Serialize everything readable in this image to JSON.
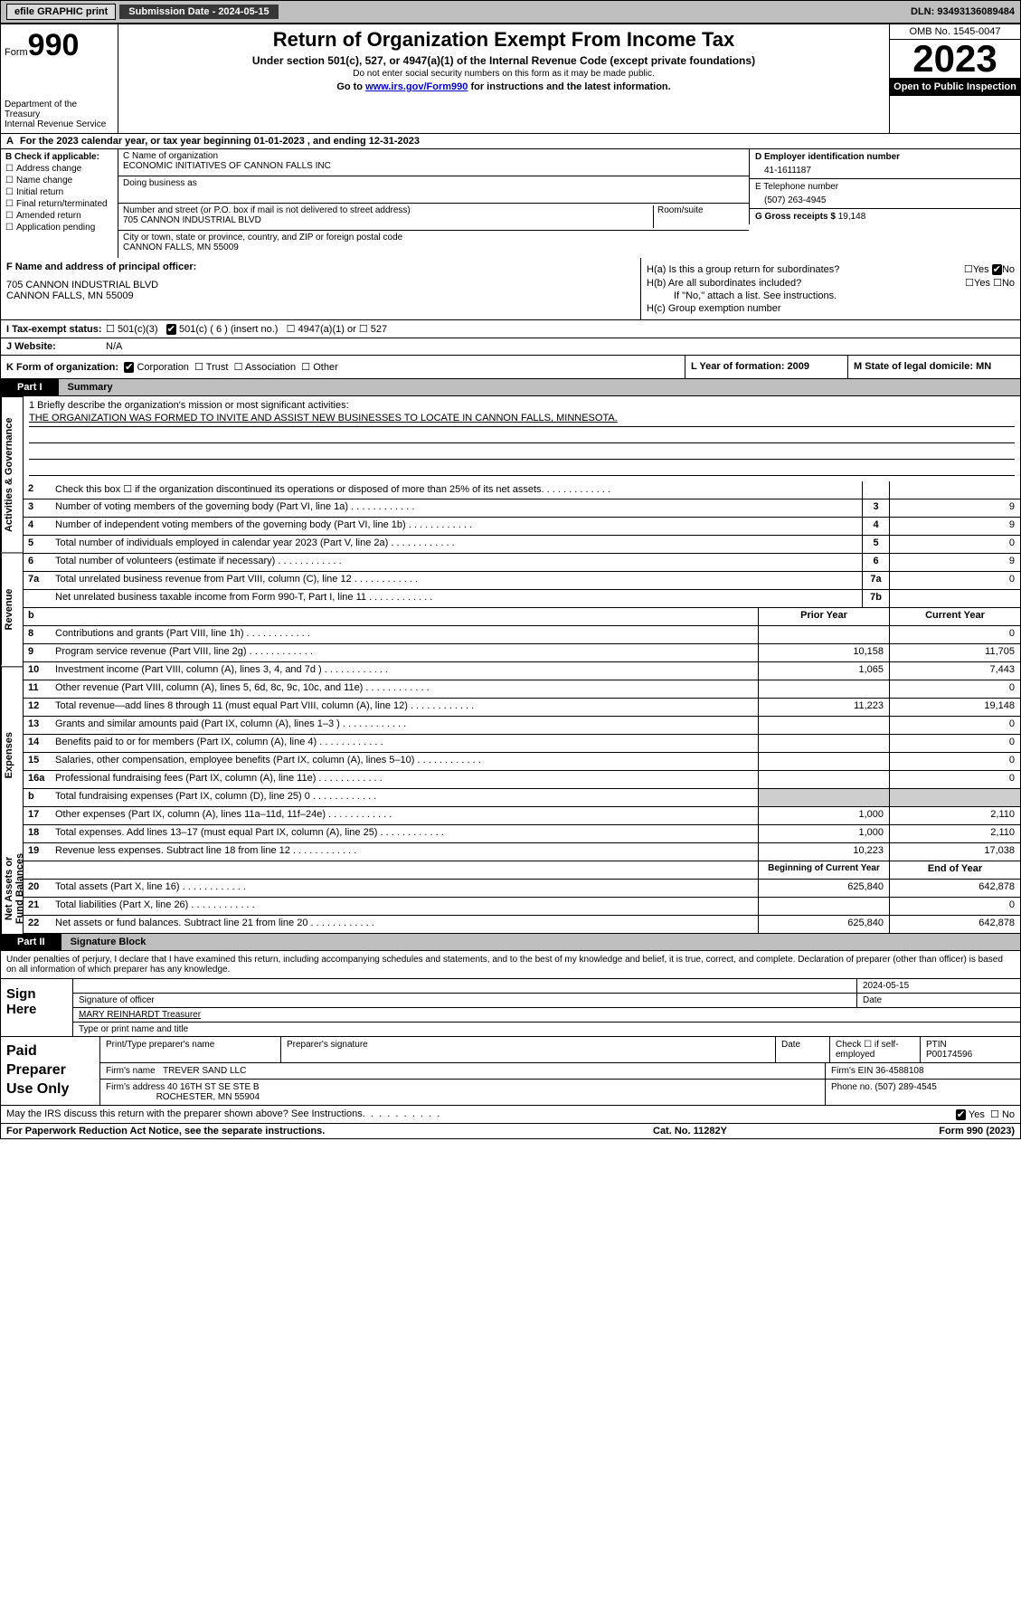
{
  "header": {
    "efile_btn": "efile GRAPHIC print",
    "sub_date_label": "Submission Date - 2024-05-15",
    "dln": "DLN: 93493136089484"
  },
  "top": {
    "form_word": "Form",
    "form_num": "990",
    "dept": "Department of the Treasury",
    "irs": "Internal Revenue Service",
    "title": "Return of Organization Exempt From Income Tax",
    "sub1": "Under section 501(c), 527, or 4947(a)(1) of the Internal Revenue Code (except private foundations)",
    "sub2": "Do not enter social security numbers on this form as it may be made public.",
    "sub3_pre": "Go to ",
    "sub3_link": "www.irs.gov/Form990",
    "sub3_post": " for instructions and the latest information.",
    "omb": "OMB No. 1545-0047",
    "year": "2023",
    "open": "Open to Public Inspection"
  },
  "rowA": {
    "label_a": "A",
    "text": "For the 2023 calendar year, or tax year beginning 01-01-2023    , and ending 12-31-2023"
  },
  "b": {
    "label": "B Check if applicable:",
    "items": [
      "Address change",
      "Name change",
      "Initial return",
      "Final return/terminated",
      "Amended return",
      "Application pending"
    ]
  },
  "c": {
    "name_lbl": "C Name of organization",
    "name_val": "ECONOMIC INITIATIVES OF CANNON FALLS INC",
    "dba_lbl": "Doing business as",
    "dba_val": "",
    "addr_lbl": "Number and street (or P.O. box if mail is not delivered to street address)",
    "addr_val": "705 CANNON INDUSTRIAL BLVD",
    "room_lbl": "Room/suite",
    "city_lbl": "City or town, state or province, country, and ZIP or foreign postal code",
    "city_val": "CANNON FALLS, MN  55009"
  },
  "d": {
    "lbl": "D Employer identification number",
    "val": "41-1611187"
  },
  "e": {
    "lbl": "E Telephone number",
    "val": "(507) 263-4945"
  },
  "g": {
    "lbl": "G Gross receipts $",
    "val": "19,148"
  },
  "f": {
    "lbl": "F  Name and address of principal officer:",
    "line1": "705 CANNON INDUSTRIAL BLVD",
    "line2": "CANNON FALLS, MN  55009"
  },
  "h": {
    "a_lbl": "H(a)  Is this a group return for subordinates?",
    "b_lbl": "H(b)  Are all subordinates included?",
    "b_note": "If \"No,\" attach a list. See instructions.",
    "c_lbl": "H(c)  Group exemption number",
    "yes": "Yes",
    "no": "No"
  },
  "i": {
    "lbl": "I    Tax-exempt status:",
    "opt1": "501(c)(3)",
    "opt2": "501(c) ( 6 ) (insert no.)",
    "opt3": "4947(a)(1) or",
    "opt4": "527"
  },
  "j": {
    "lbl": "J    Website:",
    "val": "N/A"
  },
  "k": {
    "lbl": "K Form of organization:",
    "opts": [
      "Corporation",
      "Trust",
      "Association",
      "Other"
    ],
    "l_lbl": "L Year of formation: 2009",
    "m_lbl": "M State of legal domicile: MN"
  },
  "part1": {
    "tag": "Part I",
    "title": "Summary"
  },
  "mission": {
    "q1": "1   Briefly describe the organization's mission or most significant activities:",
    "text": "THE ORGANIZATION WAS FORMED TO INVITE AND ASSIST NEW BUSINESSES TO LOCATE IN CANNON FALLS, MINNESOTA."
  },
  "sidebar": {
    "gov": "Activities & Governance",
    "rev": "Revenue",
    "exp": "Expenses",
    "net": "Net Assets or Fund Balances"
  },
  "gov_rows": [
    {
      "n": "2",
      "desc": "Check this box ☐  if the organization discontinued its operations or disposed of more than 25% of its net assets.",
      "box": "",
      "val": ""
    },
    {
      "n": "3",
      "desc": "Number of voting members of the governing body (Part VI, line 1a)",
      "box": "3",
      "val": "9"
    },
    {
      "n": "4",
      "desc": "Number of independent voting members of the governing body (Part VI, line 1b)",
      "box": "4",
      "val": "9"
    },
    {
      "n": "5",
      "desc": "Total number of individuals employed in calendar year 2023 (Part V, line 2a)",
      "box": "5",
      "val": "0"
    },
    {
      "n": "6",
      "desc": "Total number of volunteers (estimate if necessary)",
      "box": "6",
      "val": "9"
    },
    {
      "n": "7a",
      "desc": "Total unrelated business revenue from Part VIII, column (C), line 12",
      "box": "7a",
      "val": "0"
    },
    {
      "n": "",
      "desc": "Net unrelated business taxable income from Form 990-T, Part I, line 11",
      "box": "7b",
      "val": ""
    }
  ],
  "rev_hdr": {
    "n": "b",
    "prior": "Prior Year",
    "curr": "Current Year"
  },
  "rev_rows": [
    {
      "n": "8",
      "desc": "Contributions and grants (Part VIII, line 1h)",
      "p": "",
      "c": "0"
    },
    {
      "n": "9",
      "desc": "Program service revenue (Part VIII, line 2g)",
      "p": "10,158",
      "c": "11,705"
    },
    {
      "n": "10",
      "desc": "Investment income (Part VIII, column (A), lines 3, 4, and 7d )",
      "p": "1,065",
      "c": "7,443"
    },
    {
      "n": "11",
      "desc": "Other revenue (Part VIII, column (A), lines 5, 6d, 8c, 9c, 10c, and 11e)",
      "p": "",
      "c": "0"
    },
    {
      "n": "12",
      "desc": "Total revenue—add lines 8 through 11 (must equal Part VIII, column (A), line 12)",
      "p": "11,223",
      "c": "19,148"
    }
  ],
  "exp_rows": [
    {
      "n": "13",
      "desc": "Grants and similar amounts paid (Part IX, column (A), lines 1–3 )",
      "p": "",
      "c": "0"
    },
    {
      "n": "14",
      "desc": "Benefits paid to or for members (Part IX, column (A), line 4)",
      "p": "",
      "c": "0"
    },
    {
      "n": "15",
      "desc": "Salaries, other compensation, employee benefits (Part IX, column (A), lines 5–10)",
      "p": "",
      "c": "0"
    },
    {
      "n": "16a",
      "desc": "Professional fundraising fees (Part IX, column (A), line 11e)",
      "p": "",
      "c": "0"
    },
    {
      "n": "b",
      "desc": "Total fundraising expenses (Part IX, column (D), line 25) 0",
      "p": "GREY",
      "c": "GREY"
    },
    {
      "n": "17",
      "desc": "Other expenses (Part IX, column (A), lines 11a–11d, 11f–24e)",
      "p": "1,000",
      "c": "2,110"
    },
    {
      "n": "18",
      "desc": "Total expenses. Add lines 13–17 (must equal Part IX, column (A), line 25)",
      "p": "1,000",
      "c": "2,110"
    },
    {
      "n": "19",
      "desc": "Revenue less expenses. Subtract line 18 from line 12",
      "p": "10,223",
      "c": "17,038"
    }
  ],
  "net_hdr": {
    "p": "Beginning of Current Year",
    "c": "End of Year"
  },
  "net_rows": [
    {
      "n": "20",
      "desc": "Total assets (Part X, line 16)",
      "p": "625,840",
      "c": "642,878"
    },
    {
      "n": "21",
      "desc": "Total liabilities (Part X, line 26)",
      "p": "",
      "c": "0"
    },
    {
      "n": "22",
      "desc": "Net assets or fund balances. Subtract line 21 from line 20",
      "p": "625,840",
      "c": "642,878"
    }
  ],
  "part2": {
    "tag": "Part II",
    "title": "Signature Block"
  },
  "penalty": "Under penalties of perjury, I declare that I have examined this return, including accompanying schedules and statements, and to the best of my knowledge and belief, it is true, correct, and complete. Declaration of preparer (other than officer) is based on all information of which preparer has any knowledge.",
  "sign": {
    "left": "Sign Here",
    "sig_lbl": "Signature of officer",
    "date_lbl": "Date",
    "date_val": "2024-05-15",
    "name": "MARY REINHARDT Treasurer",
    "name_lbl": "Type or print name and title"
  },
  "paid": {
    "left": "Paid Preparer Use Only",
    "h1": "Print/Type preparer's name",
    "h2": "Preparer's signature",
    "h3": "Date",
    "h4_pre": "Check ☐ if self-employed",
    "h5": "PTIN",
    "ptin": "P00174596",
    "firm_name_lbl": "Firm's name",
    "firm_name": "TREVER SAND LLC",
    "firm_ein_lbl": "Firm's EIN",
    "firm_ein": "36-4588108",
    "firm_addr_lbl": "Firm's address",
    "firm_addr1": "40 16TH ST SE STE B",
    "firm_addr2": "ROCHESTER, MN  55904",
    "phone_lbl": "Phone no.",
    "phone": "(507) 289-4545"
  },
  "discuss": {
    "q": "May the IRS discuss this return with the preparer shown above? See Instructions.",
    "yes": "Yes",
    "no": "No"
  },
  "bottom": {
    "l": "For Paperwork Reduction Act Notice, see the separate instructions.",
    "m": "Cat. No. 11282Y",
    "r": "Form 990 (2023)"
  }
}
